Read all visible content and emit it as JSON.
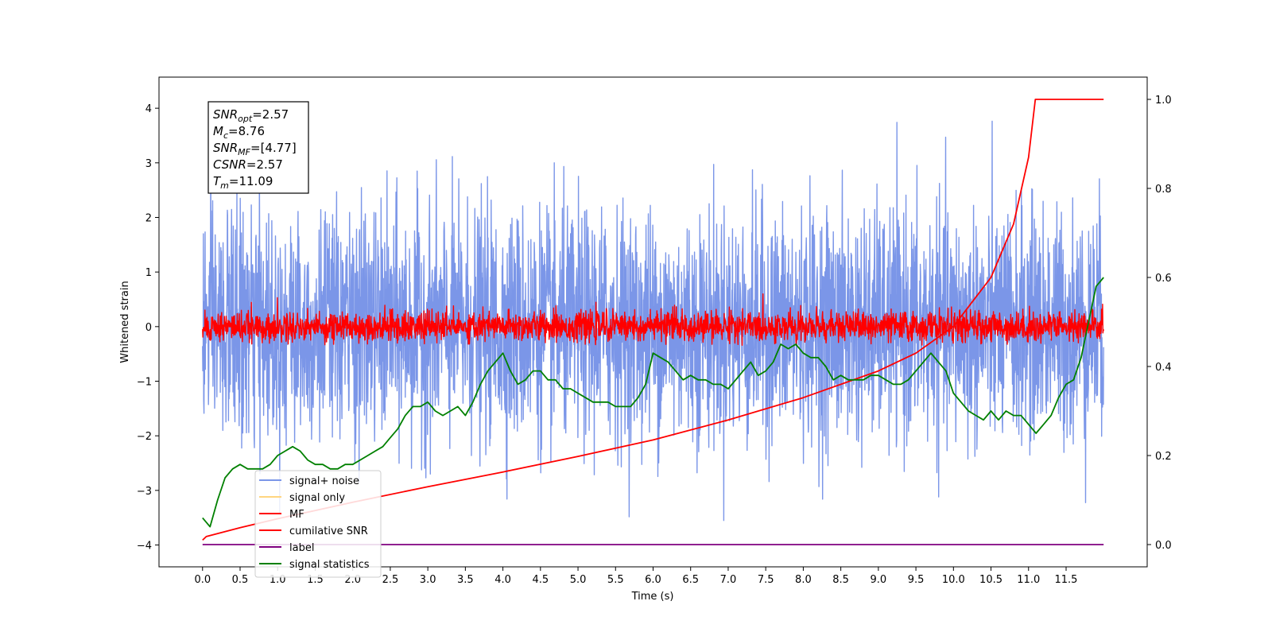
{
  "chart_data": {
    "type": "line",
    "title": "",
    "xlabel": "Time (s)",
    "ylabel": "Whitened strain",
    "xlim": [
      -0.58,
      12.58
    ],
    "ylim": [
      -4.4,
      4.57
    ],
    "y2lim": [
      -0.05,
      1.05
    ],
    "grid": false,
    "legend_position": "lower-left",
    "x_ticks": [
      "0.0",
      "0.5",
      "1.0",
      "1.5",
      "2.0",
      "2.5",
      "3.0",
      "3.5",
      "4.0",
      "4.5",
      "5.0",
      "5.5",
      "6.0",
      "6.5",
      "7.0",
      "7.5",
      "8.0",
      "8.5",
      "9.0",
      "9.5",
      "10.0",
      "10.5",
      "11.0",
      "11.5"
    ],
    "y_ticks": [
      "4",
      "3",
      "2",
      "1",
      "0",
      "−1",
      "−2",
      "−3",
      "−4"
    ],
    "y2_ticks": [
      "1.0",
      "0.8",
      "0.6",
      "0.4",
      "0.2",
      "0.0"
    ],
    "annotation": [
      {
        "base": "SNR",
        "sub": "opt",
        "value": "=2.57"
      },
      {
        "base": "M",
        "sub": "c",
        "value": "=8.76"
      },
      {
        "base": "SNR",
        "sub": "MF",
        "value": "=[4.77]"
      },
      {
        "base": "CSNR",
        "sub": "",
        "value": "=2.57"
      },
      {
        "base": "T",
        "sub": "m",
        "value": "=11.09"
      }
    ],
    "series": [
      {
        "name": "signal+ noise",
        "color": "#7b96e8",
        "axis": "left",
        "kind": "noise",
        "x_range": [
          0,
          12
        ],
        "envelope": [
          -3.6,
          4.2
        ]
      },
      {
        "name": "signal only",
        "color": "#ffd580",
        "axis": "left",
        "kind": "hidden",
        "x_range": [
          0,
          12
        ]
      },
      {
        "name": "MF",
        "color": "#ff0000",
        "axis": "left",
        "kind": "noise",
        "x_range": [
          0,
          12
        ],
        "envelope": [
          -0.35,
          0.75
        ]
      },
      {
        "name": "cumilative SNR",
        "color": "#ff0000",
        "axis": "right",
        "x": [
          0,
          0.05,
          0.5,
          1.0,
          2.0,
          3.0,
          4.0,
          5.0,
          6.0,
          7.0,
          8.0,
          9.0,
          9.5,
          10.0,
          10.5,
          10.8,
          11.0,
          11.09,
          12.0
        ],
        "values": [
          0.01,
          0.018,
          0.038,
          0.058,
          0.095,
          0.13,
          0.163,
          0.198,
          0.235,
          0.28,
          0.33,
          0.39,
          0.43,
          0.49,
          0.6,
          0.72,
          0.87,
          1.0,
          1.0
        ]
      },
      {
        "name": "label",
        "color": "#800080",
        "axis": "right",
        "x": [
          0,
          12
        ],
        "values": [
          0.0,
          0.0
        ]
      },
      {
        "name": "signal statistics",
        "color": "#008000",
        "axis": "right",
        "x": [
          0.0,
          0.1,
          0.2,
          0.3,
          0.4,
          0.5,
          0.6,
          0.7,
          0.8,
          0.9,
          1.0,
          1.1,
          1.2,
          1.3,
          1.4,
          1.5,
          1.6,
          1.7,
          1.8,
          1.9,
          2.0,
          2.1,
          2.2,
          2.3,
          2.4,
          2.5,
          2.6,
          2.7,
          2.8,
          2.9,
          3.0,
          3.1,
          3.2,
          3.3,
          3.4,
          3.5,
          3.6,
          3.7,
          3.8,
          3.9,
          4.0,
          4.1,
          4.2,
          4.3,
          4.4,
          4.5,
          4.6,
          4.7,
          4.8,
          4.9,
          5.0,
          5.1,
          5.2,
          5.3,
          5.4,
          5.5,
          5.6,
          5.7,
          5.8,
          5.9,
          6.0,
          6.1,
          6.2,
          6.3,
          6.4,
          6.5,
          6.6,
          6.7,
          6.8,
          6.9,
          7.0,
          7.1,
          7.2,
          7.3,
          7.4,
          7.5,
          7.6,
          7.7,
          7.8,
          7.9,
          8.0,
          8.1,
          8.2,
          8.3,
          8.4,
          8.5,
          8.6,
          8.7,
          8.8,
          8.9,
          9.0,
          9.1,
          9.2,
          9.3,
          9.4,
          9.5,
          9.6,
          9.7,
          9.8,
          9.9,
          10.0,
          10.1,
          10.2,
          10.3,
          10.4,
          10.5,
          10.6,
          10.7,
          10.8,
          10.9,
          11.0,
          11.1,
          11.2,
          11.3,
          11.4,
          11.5,
          11.6,
          11.7,
          11.8,
          11.9,
          12.0
        ],
        "values": [
          0.06,
          0.04,
          0.1,
          0.15,
          0.17,
          0.18,
          0.17,
          0.17,
          0.17,
          0.18,
          0.2,
          0.21,
          0.22,
          0.21,
          0.19,
          0.18,
          0.18,
          0.17,
          0.17,
          0.18,
          0.18,
          0.19,
          0.2,
          0.21,
          0.22,
          0.24,
          0.26,
          0.29,
          0.31,
          0.31,
          0.32,
          0.3,
          0.29,
          0.3,
          0.31,
          0.29,
          0.32,
          0.36,
          0.39,
          0.41,
          0.43,
          0.39,
          0.36,
          0.37,
          0.39,
          0.39,
          0.37,
          0.37,
          0.35,
          0.35,
          0.34,
          0.33,
          0.32,
          0.32,
          0.32,
          0.31,
          0.31,
          0.31,
          0.33,
          0.36,
          0.43,
          0.42,
          0.41,
          0.39,
          0.37,
          0.38,
          0.37,
          0.37,
          0.36,
          0.36,
          0.35,
          0.37,
          0.39,
          0.41,
          0.38,
          0.39,
          0.41,
          0.45,
          0.44,
          0.45,
          0.43,
          0.42,
          0.42,
          0.4,
          0.37,
          0.38,
          0.37,
          0.37,
          0.37,
          0.38,
          0.38,
          0.37,
          0.36,
          0.36,
          0.37,
          0.39,
          0.41,
          0.43,
          0.41,
          0.39,
          0.34,
          0.32,
          0.3,
          0.29,
          0.28,
          0.3,
          0.28,
          0.3,
          0.29,
          0.29,
          0.27,
          0.25,
          0.27,
          0.29,
          0.33,
          0.36,
          0.37,
          0.42,
          0.5,
          0.58,
          0.6
        ]
      }
    ]
  }
}
